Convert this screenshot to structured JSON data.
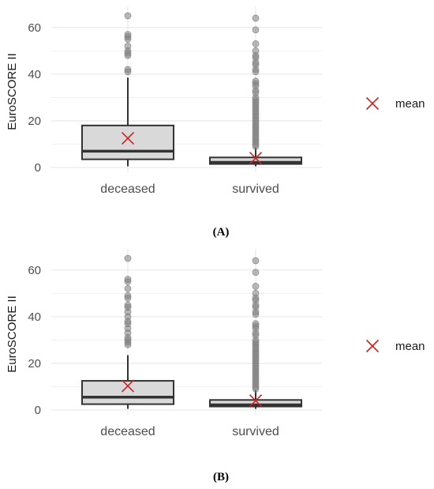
{
  "chart_data": [
    {
      "type": "box",
      "panel_label": "(A)",
      "ylabel": "EuroSCORE II",
      "yticks": [
        0,
        20,
        40,
        60
      ],
      "ylim": [
        0,
        65
      ],
      "grid": true,
      "categories": [
        "deceased",
        "survived"
      ],
      "boxes": [
        {
          "category": "deceased",
          "whisker_low": 0.5,
          "q1": 3.5,
          "median": 7,
          "q3": 18,
          "whisker_high": 38.5,
          "mean": 12.5,
          "outliers": [
            41,
            42,
            48,
            49,
            50,
            52,
            55,
            56,
            57,
            65
          ]
        },
        {
          "category": "survived",
          "whisker_low": 0.5,
          "q1": 1.5,
          "median": 2.2,
          "q3": 4.3,
          "whisker_high": 8.5,
          "mean": 4,
          "outliers": [
            9,
            10,
            11,
            12,
            13,
            14,
            15,
            16,
            17,
            18,
            19,
            20,
            21,
            22,
            23,
            24,
            25,
            26,
            27,
            28,
            29,
            30,
            32,
            33,
            35,
            36,
            37,
            41,
            42,
            44,
            45,
            47,
            48,
            50,
            53,
            59,
            64
          ]
        }
      ],
      "legend": {
        "label": "mean",
        "position": "right"
      }
    },
    {
      "type": "box",
      "panel_label": "(B)",
      "ylabel": "EuroSCORE II",
      "yticks": [
        0,
        20,
        40,
        60
      ],
      "ylim": [
        0,
        65
      ],
      "grid": true,
      "categories": [
        "deceased",
        "survived"
      ],
      "boxes": [
        {
          "category": "deceased",
          "whisker_low": 0.5,
          "q1": 2.5,
          "median": 5.5,
          "q3": 12.5,
          "whisker_high": 23.5,
          "mean": 10.3,
          "outliers": [
            28,
            29,
            30,
            31,
            33,
            35,
            37,
            38,
            40,
            42,
            44,
            45,
            48,
            49,
            52,
            55,
            56,
            65
          ]
        },
        {
          "category": "survived",
          "whisker_low": 0.5,
          "q1": 1.5,
          "median": 2.2,
          "q3": 4.3,
          "whisker_high": 8.5,
          "mean": 4,
          "outliers": [
            9,
            10,
            11,
            12,
            13,
            14,
            15,
            16,
            17,
            18,
            19,
            20,
            21,
            22,
            23,
            24,
            25,
            26,
            27,
            28,
            29,
            30,
            32,
            33,
            35,
            36,
            37,
            41,
            42,
            44,
            45,
            47,
            48,
            50,
            53,
            59,
            64
          ]
        }
      ],
      "legend": {
        "label": "mean",
        "position": "right"
      }
    }
  ],
  "colors": {
    "box_fill": "#d9d9d9",
    "box_stroke": "#333333",
    "outlier": "#7f7f7f",
    "mean_marker": "#cc2222",
    "grid": "#ebebeb"
  }
}
